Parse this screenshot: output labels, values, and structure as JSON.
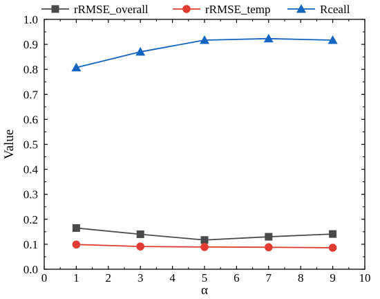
{
  "chart_data": {
    "type": "line",
    "title": "",
    "xlabel": "α",
    "ylabel": "Value",
    "xlim": [
      0,
      10
    ],
    "ylim": [
      0.0,
      1.0
    ],
    "xticks": [
      "0",
      "1",
      "2",
      "3",
      "4",
      "5",
      "6",
      "7",
      "8",
      "9",
      "10"
    ],
    "yticks": [
      "0.0",
      "0.1",
      "0.2",
      "0.3",
      "0.4",
      "0.5",
      "0.6",
      "0.7",
      "0.8",
      "0.9",
      "1.0"
    ],
    "grid": false,
    "legend_position": "top",
    "x": [
      1,
      3,
      5,
      7,
      9
    ],
    "series": [
      {
        "name": "rRMSE_overall",
        "values": [
          0.165,
          0.14,
          0.117,
          0.13,
          0.141
        ],
        "color": "#4a4a4a",
        "marker": "square"
      },
      {
        "name": "rRMSE_temp",
        "values": [
          0.099,
          0.091,
          0.089,
          0.088,
          0.086
        ],
        "color": "#e03c31",
        "marker": "circle"
      },
      {
        "name": "Rceall",
        "values": [
          0.807,
          0.87,
          0.917,
          0.923,
          0.917
        ],
        "color": "#1565c0",
        "marker": "triangle"
      }
    ]
  }
}
